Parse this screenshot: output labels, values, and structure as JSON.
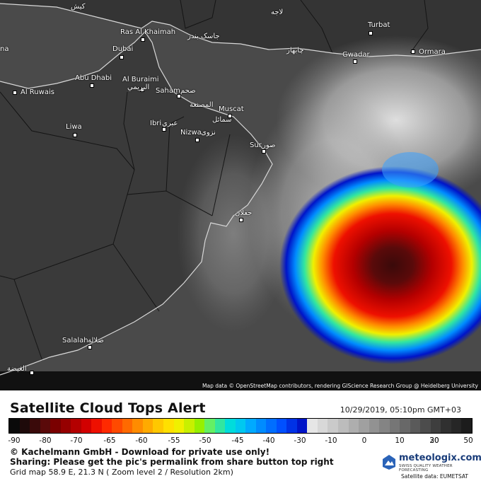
{
  "map": {
    "attribution": "Map data © OpenStreetMap contributors, rendering GIScience Research Group @ Heidelberg University",
    "cities": [
      {
        "id": "kish",
        "label": "کیش"
      },
      {
        "id": "lar",
        "label": "لاجه"
      },
      {
        "id": "ras-al-khaimah",
        "label": "Ras Al Khaimah"
      },
      {
        "id": "bandar-jask",
        "label": "جاسک بندر"
      },
      {
        "id": "turbat",
        "label": "Turbat"
      },
      {
        "id": "dubai",
        "label": "Dubai"
      },
      {
        "id": "chabahar",
        "label": "چابهار"
      },
      {
        "id": "gwadar",
        "label": "Gwadar"
      },
      {
        "id": "ormara",
        "label": "Ormara"
      },
      {
        "id": "abu-dhabi",
        "label": "Abu Dhabi"
      },
      {
        "id": "al-buraimi",
        "label": "Al Buraimi"
      },
      {
        "id": "al-buraimi-ar",
        "label": "البريمي"
      },
      {
        "id": "al-ruwais",
        "label": "Al Ruwais"
      },
      {
        "id": "saham",
        "label": "Saham"
      },
      {
        "id": "saham-ar",
        "label": "صحم"
      },
      {
        "id": "al-musanaa",
        "label": "المصنعة"
      },
      {
        "id": "muscat",
        "label": "Muscat"
      },
      {
        "id": "samail",
        "label": "سمائل"
      },
      {
        "id": "ibri",
        "label": "Ibri"
      },
      {
        "id": "ibri-ar",
        "label": "عبري"
      },
      {
        "id": "liwa",
        "label": "Liwa"
      },
      {
        "id": "nizwa",
        "label": "Nizwa"
      },
      {
        "id": "nizwa-ar",
        "label": "نزوى"
      },
      {
        "id": "sur",
        "label": "Sur"
      },
      {
        "id": "sur-ar",
        "label": "صور"
      },
      {
        "id": "jalan",
        "label": "جعلان"
      },
      {
        "id": "salalah",
        "label": "Salalah"
      },
      {
        "id": "salalah-ar",
        "label": "صلالة"
      },
      {
        "id": "al-ghaydah",
        "label": "الغيضة"
      },
      {
        "id": "edge-left",
        "label": "na"
      }
    ]
  },
  "title": "Satellite Cloud Tops Alert",
  "timestamp": "10/29/2019, 05:10pm GMT+03",
  "legend": {
    "ticks": [
      "-90",
      "-80",
      "-70",
      "-65",
      "-60",
      "-55",
      "-50",
      "-45",
      "-40",
      "-30",
      "-10",
      "0",
      "10",
      "20",
      "30",
      "50"
    ],
    "colors": [
      "#0a0a0a",
      "#1e0a0a",
      "#3a0a0a",
      "#5a0a0a",
      "#7a0000",
      "#960000",
      "#b40000",
      "#d20000",
      "#ee1000",
      "#ff2a00",
      "#ff4a00",
      "#ff6a00",
      "#ff8c00",
      "#ffaa00",
      "#ffc800",
      "#ffe000",
      "#f0f000",
      "#c8f000",
      "#96f000",
      "#64f064",
      "#32e6a0",
      "#00dcdc",
      "#00c8f0",
      "#00aaff",
      "#008cff",
      "#006eff",
      "#0050ff",
      "#0032e6",
      "#0014c8",
      "#e6e6e6",
      "#d8d8d8",
      "#cacaca",
      "#bcbcbc",
      "#aeaeae",
      "#a0a0a0",
      "#929292",
      "#848484",
      "#767676",
      "#686868",
      "#5a5a5a",
      "#4c4c4c",
      "#3e3e3e",
      "#303030",
      "#262626",
      "#1c1c1c"
    ]
  },
  "copyright": "© Kachelmann GmbH - Download for private use only!",
  "sharing": "Sharing: Please get the pic's permalink from share button top right",
  "grid_info": "Grid map 58.9 E, 21.3 N ( Zoom level 2 / Resolution 2km)",
  "logo": {
    "name": "meteologix.com",
    "tagline": "SWISS QUALITY WEATHER FORECASTING"
  },
  "satellite_data": "Satellite data: EUMETSAT"
}
